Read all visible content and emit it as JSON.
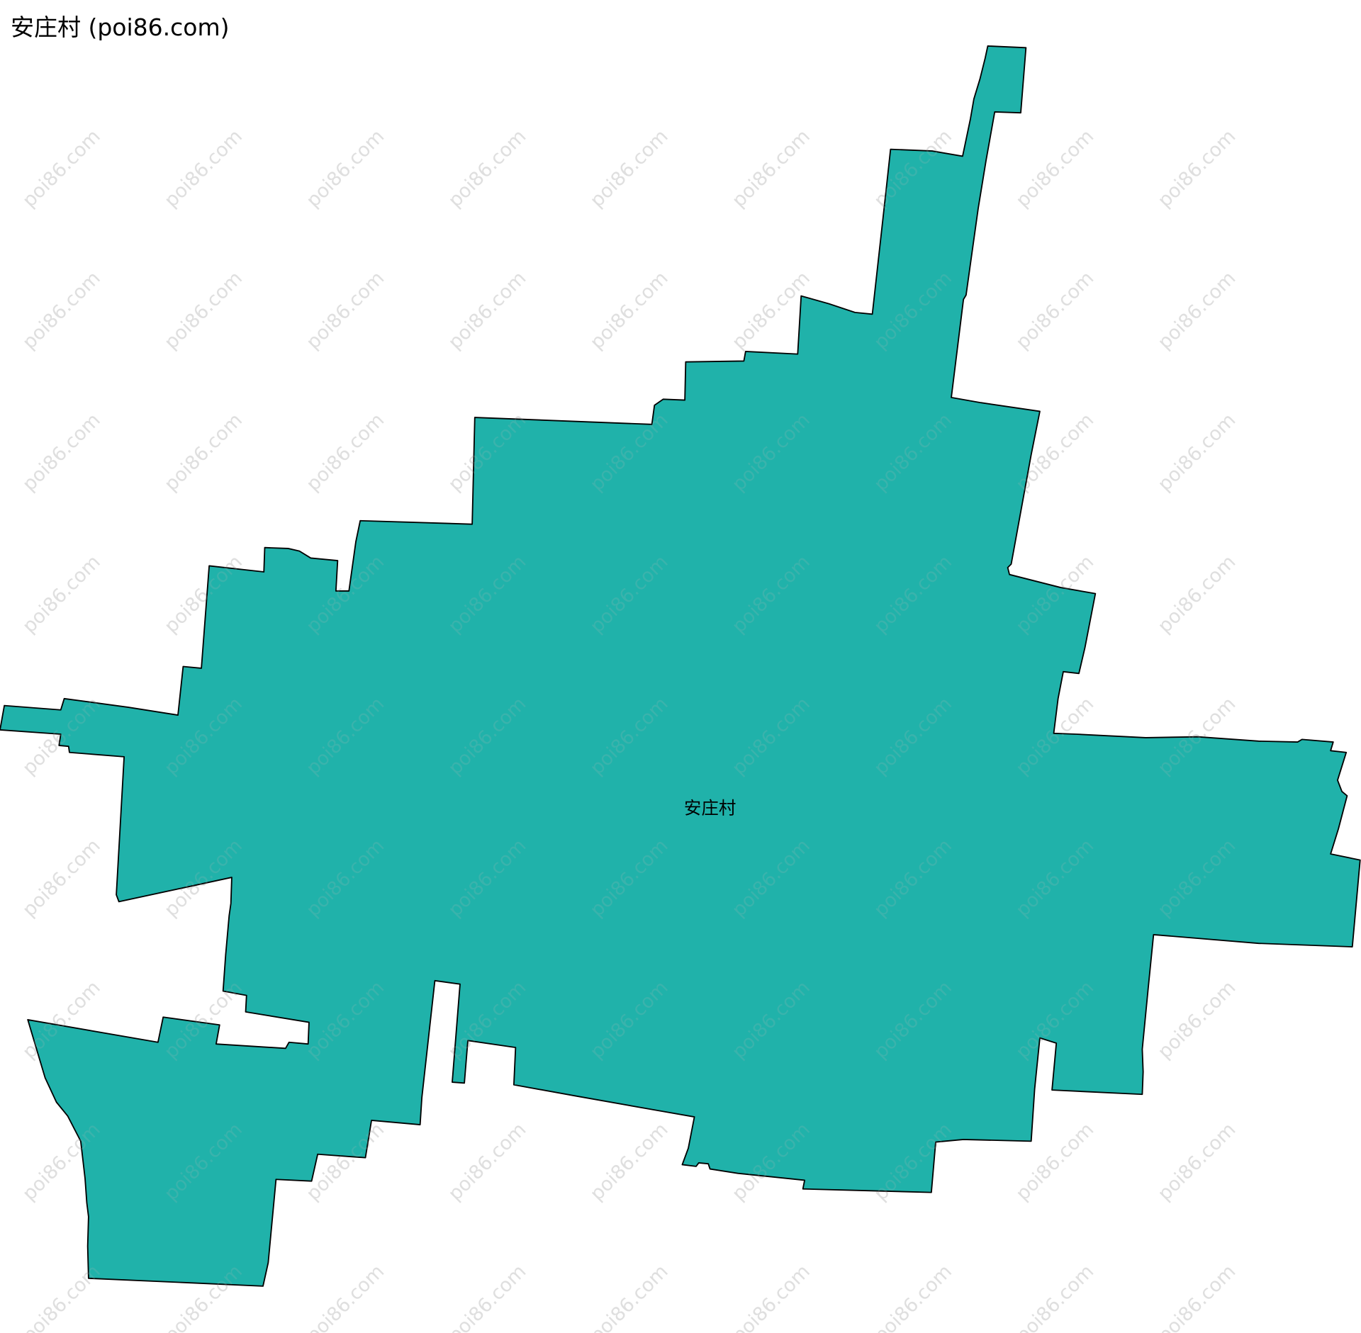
{
  "title": "安庄村 (poi86.com)",
  "watermark": "poi86.com",
  "region": {
    "name": "安庄村",
    "fill_color": "#20B2AA",
    "stroke_color": "#000000"
  }
}
